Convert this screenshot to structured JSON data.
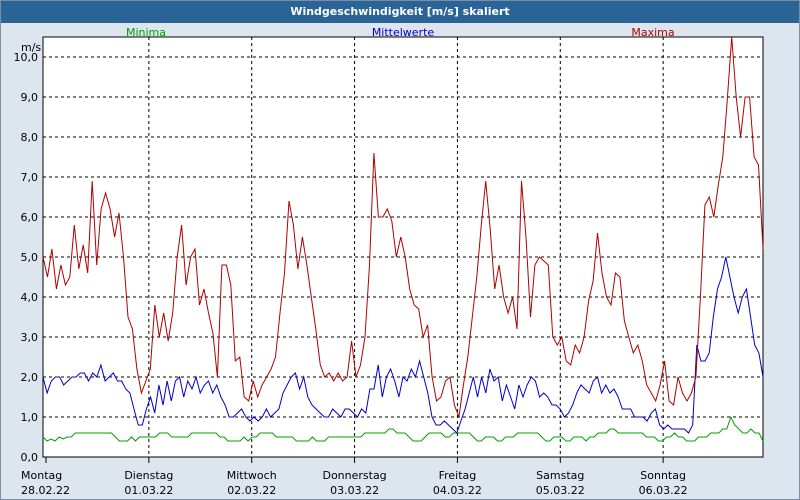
{
  "colors": {
    "minima": "#00a000",
    "mittel": "#0000cc",
    "maxima": "#b00000",
    "grid": "#000000",
    "title_bg": "#2a6496"
  },
  "chart_data": {
    "type": "line",
    "title": "Windgeschwindigkeit [m/s] skaliert",
    "ylabel": "m/s",
    "ylim": [
      0,
      10.5
    ],
    "yticks": [
      "0,0",
      "1,0",
      "2,0",
      "3,0",
      "4,0",
      "5,0",
      "6,0",
      "7,0",
      "8,0",
      "9,0",
      "10,0"
    ],
    "x_labels": [
      {
        "day": "Montag",
        "date": "28.02.22"
      },
      {
        "day": "Dienstag",
        "date": "01.03.22"
      },
      {
        "day": "Mittwoch",
        "date": "02.03.22"
      },
      {
        "day": "Donnerstag",
        "date": "03.03.22"
      },
      {
        "day": "Freitag",
        "date": "04.03.22"
      },
      {
        "day": "Samstag",
        "date": "05.03.22"
      },
      {
        "day": "Sonntag",
        "date": "06.03.22"
      }
    ],
    "x_range_days": [
      0,
      7
    ],
    "series": [
      {
        "name": "Minima",
        "key": "minima",
        "values": [
          0.5,
          0.4,
          0.45,
          0.4,
          0.5,
          0.45,
          0.5,
          0.5,
          0.6,
          0.6,
          0.6,
          0.6,
          0.6,
          0.6,
          0.6,
          0.6,
          0.6,
          0.6,
          0.5,
          0.4,
          0.4,
          0.4,
          0.5,
          0.4,
          0.5,
          0.5,
          0.5,
          0.5,
          0.5,
          0.6,
          0.6,
          0.6,
          0.5,
          0.5,
          0.5,
          0.5,
          0.5,
          0.6,
          0.6,
          0.6,
          0.6,
          0.6,
          0.6,
          0.6,
          0.5,
          0.5,
          0.4,
          0.4,
          0.4,
          0.4,
          0.5,
          0.4,
          0.5,
          0.5,
          0.6,
          0.6,
          0.6,
          0.6,
          0.5,
          0.5,
          0.5,
          0.5,
          0.5,
          0.4,
          0.4,
          0.4,
          0.4,
          0.5,
          0.4,
          0.4,
          0.4,
          0.5,
          0.5,
          0.5,
          0.5,
          0.5,
          0.5,
          0.5,
          0.5,
          0.5,
          0.6,
          0.6,
          0.6,
          0.6,
          0.6,
          0.6,
          0.7,
          0.7,
          0.6,
          0.6,
          0.6,
          0.5,
          0.4,
          0.4,
          0.4,
          0.5,
          0.6,
          0.6,
          0.6,
          0.6,
          0.5,
          0.5,
          0.6,
          0.6,
          0.6,
          0.6,
          0.6,
          0.5,
          0.4,
          0.4,
          0.5,
          0.5,
          0.5,
          0.4,
          0.4,
          0.5,
          0.5,
          0.5,
          0.6,
          0.6,
          0.6,
          0.6,
          0.6,
          0.6,
          0.5,
          0.4,
          0.4,
          0.5,
          0.5,
          0.5,
          0.4,
          0.4,
          0.5,
          0.5,
          0.5,
          0.4,
          0.5,
          0.5,
          0.6,
          0.6,
          0.6,
          0.7,
          0.7,
          0.6,
          0.6,
          0.6,
          0.6,
          0.6,
          0.6,
          0.6,
          0.5,
          0.5,
          0.5,
          0.4,
          0.4,
          0.5,
          0.5,
          0.6,
          0.5,
          0.5,
          0.4,
          0.4,
          0.4,
          0.5,
          0.5,
          0.5,
          0.6,
          0.6,
          0.6,
          0.7,
          0.7,
          1.0,
          0.8,
          0.7,
          0.6,
          0.6,
          0.7,
          0.6,
          0.6,
          0.4
        ]
      },
      {
        "name": "Mittelwerte",
        "key": "mittel",
        "values": [
          2.0,
          1.6,
          1.9,
          2.0,
          2.0,
          1.8,
          1.9,
          2.0,
          2.0,
          2.1,
          2.1,
          1.9,
          2.1,
          2.0,
          2.3,
          1.9,
          2.0,
          2.1,
          1.9,
          1.9,
          1.7,
          1.6,
          1.2,
          0.8,
          0.8,
          1.2,
          1.5,
          1.1,
          1.8,
          1.3,
          1.9,
          1.4,
          1.9,
          2.0,
          1.5,
          1.9,
          1.7,
          2.0,
          1.6,
          1.8,
          1.9,
          1.6,
          1.8,
          1.5,
          1.3,
          1.0,
          1.0,
          1.1,
          1.2,
          1.0,
          0.9,
          1.0,
          0.9,
          1.0,
          1.2,
          1.0,
          1.1,
          1.2,
          1.6,
          1.8,
          2.0,
          2.1,
          1.7,
          2.0,
          1.5,
          1.3,
          1.2,
          1.1,
          1.0,
          1.0,
          1.2,
          1.1,
          1.0,
          1.2,
          1.2,
          1.1,
          1.0,
          1.2,
          1.1,
          1.7,
          1.7,
          2.3,
          1.5,
          2.0,
          2.2,
          1.9,
          1.5,
          2.0,
          1.9,
          2.2,
          2.0,
          2.4,
          2.0,
          1.6,
          1.0,
          0.8,
          0.8,
          0.9,
          0.8,
          0.7,
          0.6,
          0.9,
          1.2,
          1.6,
          2.0,
          1.5,
          2.0,
          1.6,
          2.2,
          1.9,
          2.0,
          1.4,
          1.8,
          1.5,
          1.2,
          1.8,
          1.5,
          1.8,
          2.0,
          1.9,
          1.5,
          1.6,
          1.5,
          1.3,
          1.3,
          1.2,
          1.0,
          1.1,
          1.3,
          1.6,
          1.8,
          1.7,
          1.6,
          1.9,
          2.0,
          1.6,
          1.8,
          1.6,
          1.7,
          1.5,
          1.2,
          1.2,
          1.2,
          1.0,
          1.0,
          1.0,
          0.9,
          1.1,
          1.2,
          0.8,
          0.7,
          0.8,
          0.7,
          0.7,
          0.7,
          0.7,
          0.6,
          0.8,
          2.8,
          2.4,
          2.4,
          2.6,
          3.5,
          4.2,
          4.5,
          5.0,
          4.5,
          4.0,
          3.6,
          4.0,
          4.2,
          3.5,
          2.8,
          2.6,
          2.0
        ]
      },
      {
        "name": "Maxima",
        "key": "maxima",
        "values": [
          5.0,
          4.5,
          5.2,
          4.2,
          4.8,
          4.3,
          4.5,
          5.8,
          4.7,
          5.3,
          4.6,
          6.9,
          4.8,
          6.2,
          6.6,
          6.2,
          5.5,
          6.1,
          5.0,
          3.5,
          3.2,
          2.2,
          1.6,
          1.9,
          2.2,
          3.8,
          3.0,
          3.6,
          2.9,
          3.6,
          5.0,
          5.8,
          4.3,
          5.0,
          5.2,
          3.8,
          4.2,
          3.6,
          3.1,
          2.0,
          4.8,
          4.8,
          4.3,
          2.4,
          2.5,
          1.5,
          1.4,
          1.9,
          1.5,
          1.8,
          2.0,
          2.2,
          2.5,
          3.6,
          4.6,
          6.4,
          5.8,
          4.7,
          5.5,
          4.8,
          4.0,
          3.2,
          2.3,
          2.0,
          2.1,
          1.9,
          2.1,
          1.9,
          2.0,
          2.9,
          2.0,
          2.3,
          3.0,
          4.8,
          7.6,
          6.0,
          6.0,
          6.2,
          5.9,
          5.0,
          5.5,
          5.0,
          4.2,
          3.8,
          3.7,
          3.0,
          3.3,
          2.0,
          1.4,
          1.5,
          1.9,
          2.0,
          1.3,
          1.0,
          1.8,
          2.5,
          3.5,
          4.5,
          5.8,
          6.9,
          5.7,
          4.2,
          4.8,
          4.0,
          3.6,
          4.0,
          3.2,
          6.9,
          5.5,
          3.5,
          4.8,
          5.0,
          4.9,
          4.8,
          3.0,
          2.8,
          3.0,
          2.4,
          2.3,
          2.8,
          2.6,
          3.0,
          3.9,
          4.4,
          5.6,
          4.6,
          4.0,
          3.8,
          4.6,
          4.5,
          3.4,
          3.0,
          2.6,
          2.8,
          2.4,
          1.8,
          1.6,
          1.4,
          1.8,
          2.4,
          1.4,
          1.3,
          2.0,
          1.6,
          1.4,
          1.6,
          2.0,
          4.0,
          6.3,
          6.5,
          6.0,
          6.8,
          7.5,
          8.9,
          10.5,
          9.0,
          8.0,
          9.0,
          9.0,
          7.5,
          7.3,
          5.2
        ]
      }
    ]
  }
}
